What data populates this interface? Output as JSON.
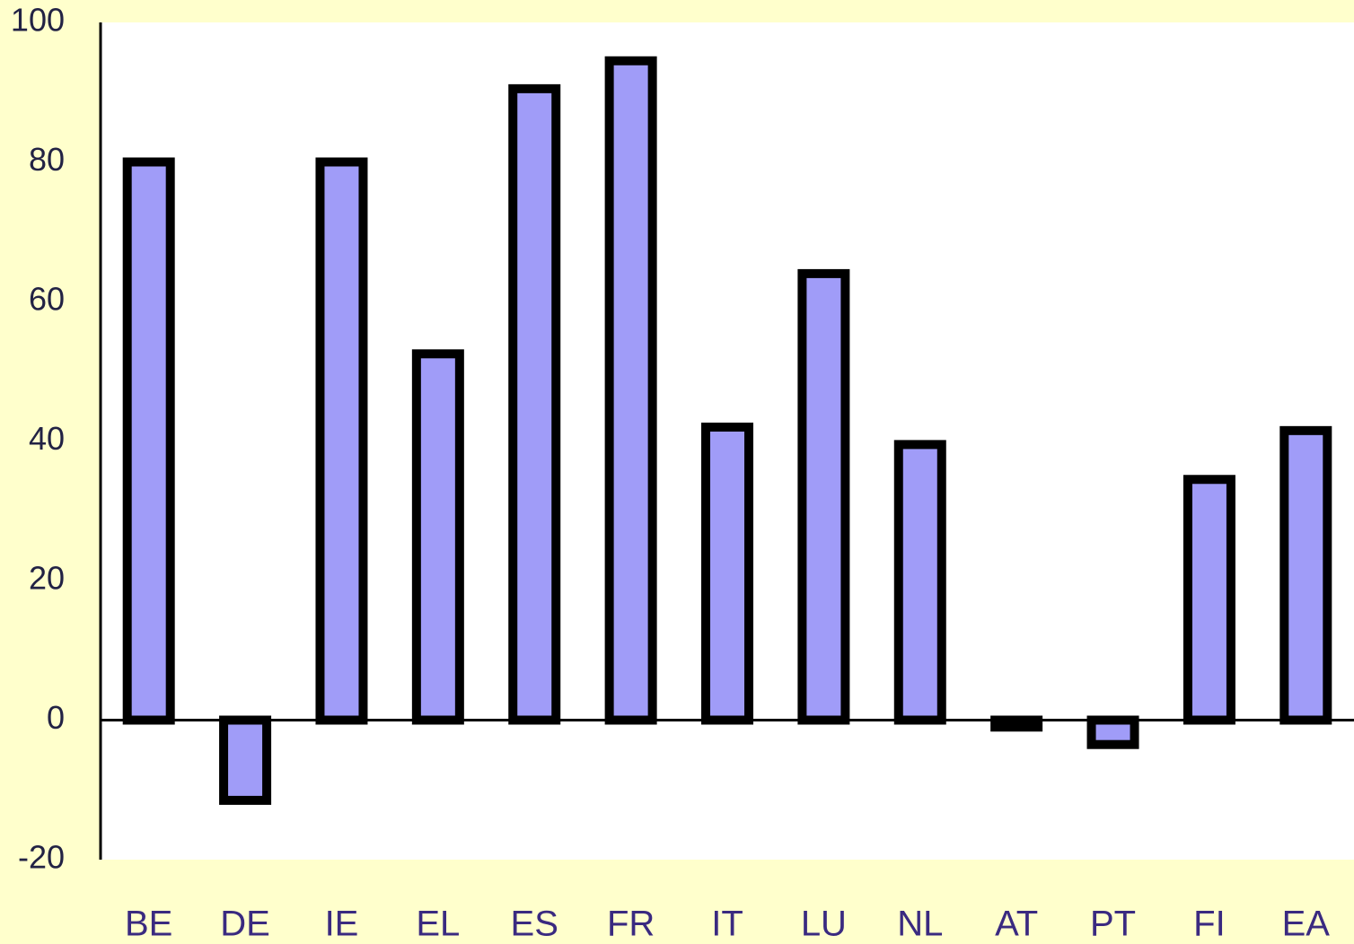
{
  "chart_data": {
    "type": "bar",
    "categories": [
      "BE",
      "DE",
      "IE",
      "EL",
      "ES",
      "FR",
      "IT",
      "LU",
      "NL",
      "AT",
      "PT",
      "FI",
      "EA"
    ],
    "values": [
      80,
      -11.5,
      80,
      52.5,
      90.5,
      94.5,
      42,
      64,
      39.5,
      -1,
      -3.5,
      34.5,
      41.5
    ],
    "color": "#a09cf8",
    "ylim": [
      -20,
      100
    ],
    "yticks": [
      -20,
      0,
      20,
      40,
      60,
      80,
      100
    ],
    "grid": false
  }
}
